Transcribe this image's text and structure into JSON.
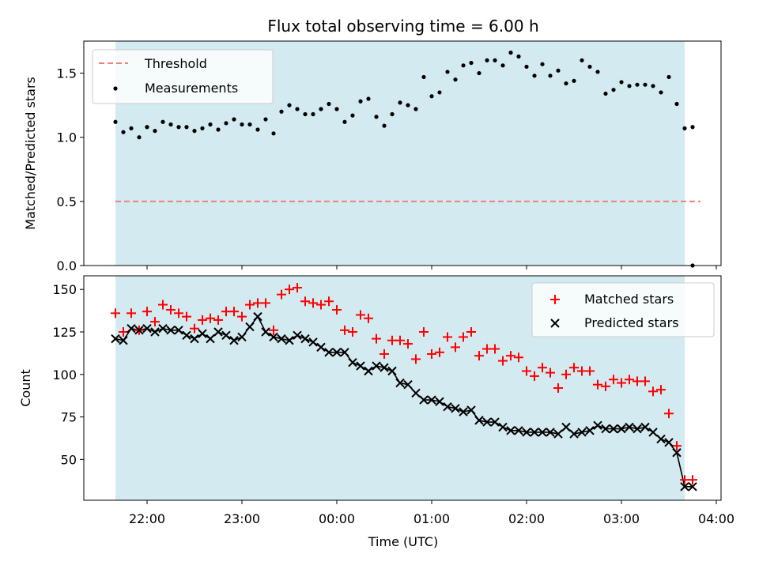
{
  "chart_data": [
    {
      "type": "scatter",
      "title": "Flux total observing time = 6.00 h",
      "xlabel": "",
      "ylabel": "Matched/Predicted stars",
      "ylim": [
        0,
        1.75
      ],
      "yticks": [
        "0.0",
        "0.5",
        "1.0",
        "1.5"
      ],
      "ytick_values": [
        0,
        0.5,
        1.0,
        1.5
      ],
      "shaded_span": {
        "start": "21:40",
        "end": "03:40",
        "color": "#add8e6"
      },
      "threshold": {
        "name": "Threshold",
        "value": 0.5,
        "color": "#f08080"
      },
      "legend": {
        "position": "top-left",
        "entries": [
          "Threshold",
          "Measurements"
        ]
      },
      "series": [
        {
          "name": "Measurements",
          "color": "#000000",
          "x": [
            "21:40",
            "21:45",
            "21:50",
            "21:55",
            "22:00",
            "22:05",
            "22:10",
            "22:15",
            "22:20",
            "22:25",
            "22:30",
            "22:35",
            "22:40",
            "22:45",
            "22:50",
            "22:55",
            "23:00",
            "23:05",
            "23:10",
            "23:15",
            "23:20",
            "23:25",
            "23:30",
            "23:35",
            "23:40",
            "23:45",
            "23:50",
            "23:55",
            "00:00",
            "00:05",
            "00:10",
            "00:15",
            "00:20",
            "00:25",
            "00:30",
            "00:35",
            "00:40",
            "00:45",
            "00:50",
            "00:55",
            "01:00",
            "01:05",
            "01:10",
            "01:15",
            "01:20",
            "01:25",
            "01:30",
            "01:35",
            "01:40",
            "01:45",
            "01:50",
            "01:55",
            "02:00",
            "02:05",
            "02:10",
            "02:15",
            "02:20",
            "02:25",
            "02:30",
            "02:35",
            "02:40",
            "02:45",
            "02:50",
            "02:55",
            "03:00",
            "03:05",
            "03:10",
            "03:15",
            "03:20",
            "03:25",
            "03:30",
            "03:35",
            "03:40",
            "03:45"
          ],
          "values": [
            1.12,
            1.04,
            1.07,
            1.0,
            1.08,
            1.05,
            1.12,
            1.1,
            1.08,
            1.08,
            1.05,
            1.07,
            1.1,
            1.06,
            1.11,
            1.14,
            1.1,
            1.1,
            1.06,
            1.14,
            1.03,
            1.2,
            1.25,
            1.22,
            1.18,
            1.18,
            1.22,
            1.26,
            1.22,
            1.12,
            1.17,
            1.28,
            1.3,
            1.16,
            1.09,
            1.18,
            1.27,
            1.25,
            1.22,
            1.47,
            1.32,
            1.35,
            1.51,
            1.45,
            1.56,
            1.58,
            1.5,
            1.6,
            1.6,
            1.56,
            1.66,
            1.63,
            1.55,
            1.48,
            1.57,
            1.48,
            1.52,
            1.42,
            1.44,
            1.6,
            1.55,
            1.51,
            1.34,
            1.37,
            1.43,
            1.4,
            1.41,
            1.41,
            1.4,
            1.35,
            1.47,
            1.26,
            1.07,
            1.08
          ]
        }
      ],
      "extra_points": [
        {
          "x": "03:45",
          "value": 0.0
        }
      ]
    },
    {
      "type": "scatter",
      "title": "",
      "xlabel": "Time (UTC)",
      "ylabel": "Count",
      "ylim": [
        26,
        158
      ],
      "yticks": [
        "50",
        "75",
        "100",
        "125",
        "150"
      ],
      "ytick_values": [
        50,
        75,
        100,
        125,
        150
      ],
      "xticks": [
        "22:00",
        "23:00",
        "00:00",
        "01:00",
        "02:00",
        "03:00",
        "04:00"
      ],
      "shaded_span": {
        "start": "21:40",
        "end": "03:40",
        "color": "#add8e6"
      },
      "legend": {
        "position": "top-right",
        "entries": [
          "Matched stars",
          "Predicted stars"
        ]
      },
      "series": [
        {
          "name": "Matched stars",
          "color": "#ff0000",
          "marker": "+",
          "x": [
            "21:40",
            "21:45",
            "21:50",
            "21:55",
            "22:00",
            "22:05",
            "22:10",
            "22:15",
            "22:20",
            "22:25",
            "22:30",
            "22:35",
            "22:40",
            "22:45",
            "22:50",
            "22:55",
            "23:00",
            "23:05",
            "23:10",
            "23:15",
            "23:20",
            "23:25",
            "23:30",
            "23:35",
            "23:40",
            "23:45",
            "23:50",
            "23:55",
            "00:00",
            "00:05",
            "00:10",
            "00:15",
            "00:20",
            "00:25",
            "00:30",
            "00:35",
            "00:40",
            "00:45",
            "00:50",
            "00:55",
            "01:00",
            "01:05",
            "01:10",
            "01:15",
            "01:20",
            "01:25",
            "01:30",
            "01:35",
            "01:40",
            "01:45",
            "01:50",
            "01:55",
            "02:00",
            "02:05",
            "02:10",
            "02:15",
            "02:20",
            "02:25",
            "02:30",
            "02:35",
            "02:40",
            "02:45",
            "02:50",
            "02:55",
            "03:00",
            "03:05",
            "03:10",
            "03:15",
            "03:20",
            "03:25",
            "03:30",
            "03:35",
            "03:40",
            "03:45"
          ],
          "values": [
            136,
            125,
            136,
            126,
            137,
            131,
            141,
            138,
            136,
            134,
            127,
            132,
            133,
            132,
            137,
            137,
            134,
            141,
            142,
            142,
            126,
            147,
            150,
            151,
            143,
            142,
            141,
            143,
            138,
            126,
            125,
            135,
            133,
            121,
            112,
            120,
            120,
            118,
            109,
            125,
            112,
            113,
            122,
            116,
            122,
            125,
            111,
            115,
            115,
            108,
            111,
            110,
            102,
            99,
            104,
            101,
            92,
            100,
            104,
            102,
            102,
            94,
            93,
            97,
            95,
            97,
            96,
            96,
            90,
            91,
            77,
            58,
            38,
            38
          ]
        },
        {
          "name": "Predicted stars",
          "color": "#000000",
          "marker": "x",
          "x": [
            "21:40",
            "21:45",
            "21:50",
            "21:55",
            "22:00",
            "22:05",
            "22:10",
            "22:15",
            "22:20",
            "22:25",
            "22:30",
            "22:35",
            "22:40",
            "22:45",
            "22:50",
            "22:55",
            "23:00",
            "23:05",
            "23:10",
            "23:15",
            "23:20",
            "23:25",
            "23:30",
            "23:35",
            "23:40",
            "23:45",
            "23:50",
            "23:55",
            "00:00",
            "00:05",
            "00:10",
            "00:15",
            "00:20",
            "00:25",
            "00:30",
            "00:35",
            "00:40",
            "00:45",
            "00:50",
            "00:55",
            "01:00",
            "01:05",
            "01:10",
            "01:15",
            "01:20",
            "01:25",
            "01:30",
            "01:35",
            "01:40",
            "01:45",
            "01:50",
            "01:55",
            "02:00",
            "02:05",
            "02:10",
            "02:15",
            "02:20",
            "02:25",
            "02:30",
            "02:35",
            "02:40",
            "02:45",
            "02:50",
            "02:55",
            "03:00",
            "03:05",
            "03:10",
            "03:15",
            "03:20",
            "03:25",
            "03:30",
            "03:35",
            "03:40",
            "03:45"
          ],
          "values": [
            121,
            120,
            127,
            126,
            127,
            125,
            127,
            126,
            126,
            123,
            121,
            124,
            121,
            125,
            123,
            120,
            122,
            128,
            134,
            125,
            122,
            121,
            120,
            123,
            121,
            119,
            116,
            113,
            113,
            113,
            107,
            105,
            102,
            105,
            104,
            102,
            95,
            94,
            89,
            85,
            85,
            84,
            81,
            80,
            78,
            79,
            73,
            72,
            72,
            69,
            67,
            67,
            66,
            66,
            66,
            66,
            65,
            69,
            65,
            66,
            67,
            70,
            68,
            68,
            68,
            69,
            68,
            69,
            66,
            62,
            60,
            54,
            34,
            34
          ]
        }
      ]
    }
  ]
}
